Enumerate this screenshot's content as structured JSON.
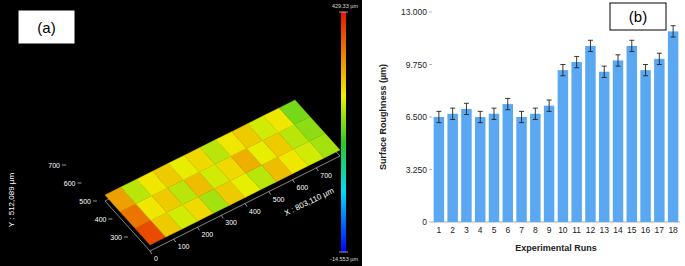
{
  "chart_data": [
    {
      "type": "surface_3d",
      "title": "(a)",
      "x_label": "X : 803,110 µm",
      "y_label": "Y : 512,089 µm",
      "xlim": [
        0,
        800
      ],
      "xticks": [
        0,
        100,
        200,
        300,
        400,
        500,
        600,
        700
      ],
      "ylim": [
        300,
        700
      ],
      "yticks": [
        300,
        400,
        500,
        600,
        700
      ],
      "cells": [
        [
          390,
          300,
          260,
          290,
          240,
          300,
          270,
          250,
          310,
          280,
          260,
          240
        ],
        [
          360,
          280,
          300,
          250,
          310,
          260,
          290,
          320,
          270,
          300,
          250,
          230
        ],
        [
          330,
          250,
          280,
          300,
          270,
          290,
          250,
          280,
          300,
          260,
          280,
          220
        ]
      ],
      "colorbar_range": [
        -14.553,
        429.33
      ],
      "colorbar_ticks": [
        {
          "value": 429.33,
          "label": "429.33 µm"
        },
        {
          "value": -14.553,
          "label": "-14.553 µm"
        }
      ]
    },
    {
      "type": "bar",
      "title": "(b)",
      "x_label": "Experimental Runs",
      "y_label": "Surface Roughness (µm)",
      "categories": [
        "1",
        "2",
        "3",
        "4",
        "5",
        "6",
        "7",
        "8",
        "9",
        "10",
        "11",
        "12",
        "13",
        "14",
        "15",
        "16",
        "17",
        "18"
      ],
      "values": [
        6.5,
        6.7,
        7.0,
        6.5,
        6.7,
        7.3,
        6.5,
        6.7,
        7.2,
        9.4,
        9.9,
        10.9,
        9.3,
        10.0,
        10.9,
        9.4,
        10.1,
        11.8
      ],
      "errors": [
        0.35,
        0.35,
        0.35,
        0.35,
        0.35,
        0.35,
        0.35,
        0.35,
        0.35,
        0.35,
        0.35,
        0.35,
        0.35,
        0.35,
        0.35,
        0.35,
        0.35,
        0.35
      ],
      "color": "#5aa8f2",
      "ylim": [
        0,
        13
      ],
      "yticks": [
        0,
        {
          "value": 3.25,
          "label": "3.250"
        },
        {
          "value": 6.5,
          "label": "6.500"
        },
        {
          "value": 9.75,
          "label": "9.750"
        },
        {
          "value": 13,
          "label": "13.000"
        }
      ],
      "grid": false
    }
  ]
}
